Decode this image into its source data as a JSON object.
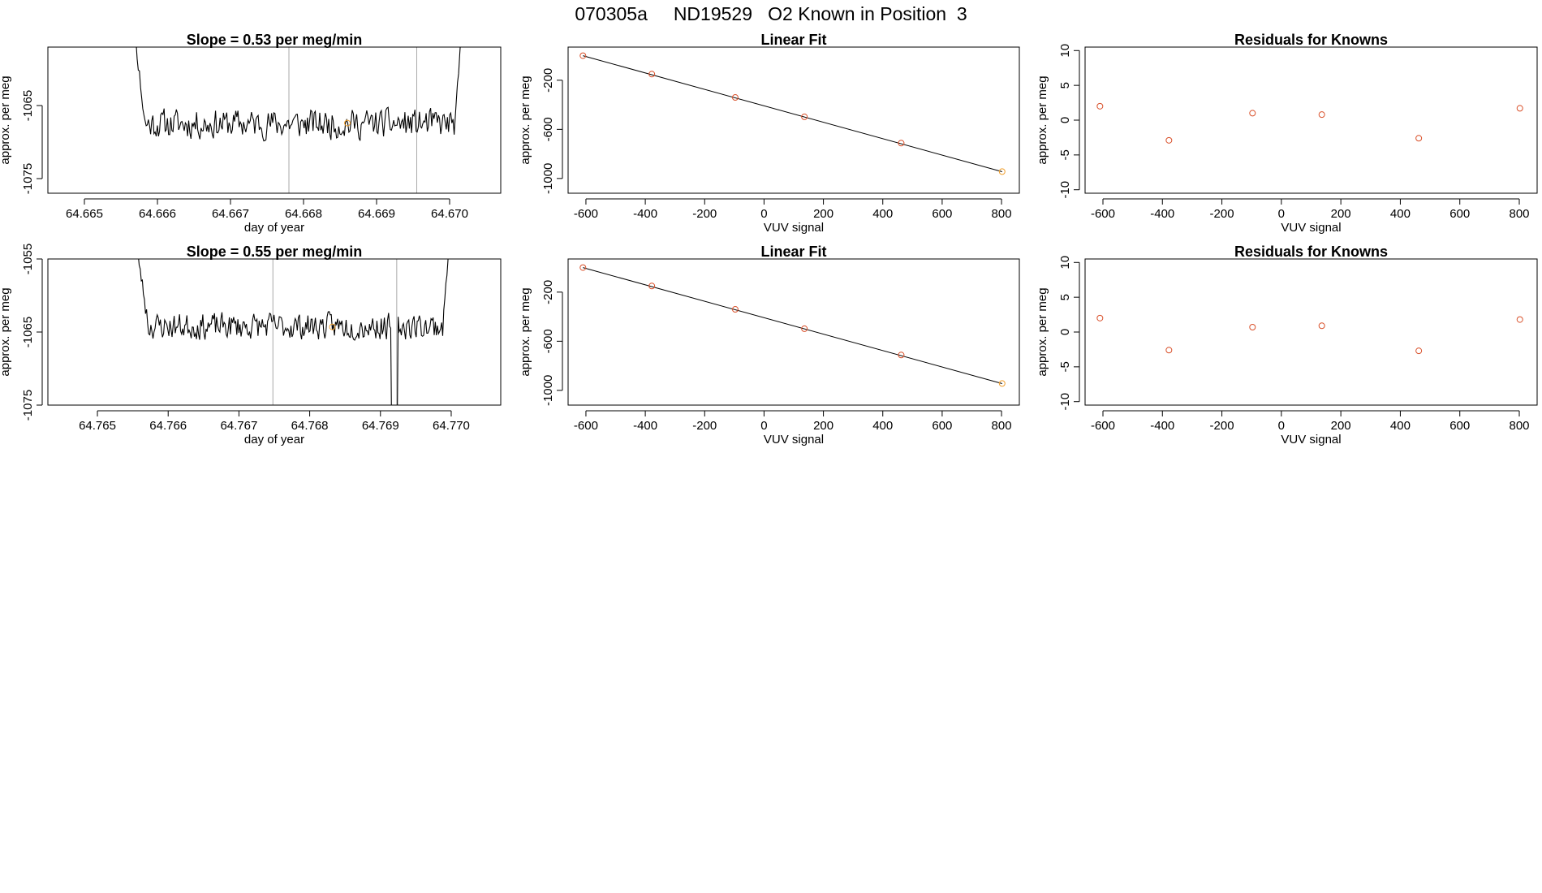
{
  "main_title": "070305a     ND19529   O2 Known in Position  3",
  "colors": {
    "line": "#000000",
    "point": "#d9502a",
    "highlight": "#f0a030",
    "frame": "#000000",
    "vline": "#aaaaaa"
  },
  "chart_data": [
    {
      "id": "ts1",
      "type": "line",
      "title": "Slope =  0.53  per meg/min",
      "xlabel": "day of year",
      "ylabel": "approx. per meg",
      "xlim": [
        64.6645,
        64.6707
      ],
      "ylim": [
        -1077,
        -1057
      ],
      "xticks": [
        64.665,
        64.666,
        64.667,
        64.668,
        64.669,
        64.67
      ],
      "xtick_labels": [
        "64.665",
        "64.666",
        "64.667",
        "64.668",
        "64.669",
        "64.670"
      ],
      "yticks": [
        -1065,
        -1075
      ],
      "ytick_labels": [
        "-1065",
        "-1075"
      ],
      "start": 64.6656,
      "end": 64.6702,
      "base": -1067.5,
      "noise": 2.6,
      "edge_left": -1047,
      "edge_right": -1048,
      "seed": 11,
      "vlines": [
        64.6678,
        64.66955
      ],
      "marker": {
        "x": 64.6686,
        "y": -1067.4
      }
    },
    {
      "id": "lf1",
      "type": "scatter+fit",
      "title": "Linear Fit",
      "xlabel": "VUV signal",
      "ylabel": "approx. per meg",
      "xlim": [
        -660,
        860
      ],
      "ylim": [
        -1120,
        70
      ],
      "xticks": [
        -600,
        -400,
        -200,
        0,
        200,
        400,
        600,
        800
      ],
      "xtick_labels": [
        "-600",
        "-400",
        "-200",
        "0",
        "200",
        "400",
        "600",
        "800"
      ],
      "yticks": [
        -200,
        -600,
        -1000
      ],
      "ytick_labels": [
        "-200",
        "-600",
        "-1000"
      ],
      "x": [
        -610,
        -378,
        -97,
        136,
        462,
        802
      ],
      "y": [
        0,
        -150,
        -340,
        -498,
        -712,
        -944
      ],
      "fit": {
        "x0": -610,
        "y0": 0,
        "x1": 802,
        "y1": -945
      },
      "highlight_index": 5
    },
    {
      "id": "rs1",
      "type": "scatter",
      "title": "Residuals for Knowns",
      "xlabel": "VUV signal",
      "ylabel": "approx. per meg",
      "xlim": [
        -660,
        860
      ],
      "ylim": [
        -10.5,
        10.5
      ],
      "xticks": [
        -600,
        -400,
        -200,
        0,
        200,
        400,
        600,
        800
      ],
      "xtick_labels": [
        "-600",
        "-400",
        "-200",
        "0",
        "200",
        "400",
        "600",
        "800"
      ],
      "yticks": [
        10,
        5,
        0,
        -5,
        -10
      ],
      "ytick_labels": [
        "10",
        "5",
        "0",
        "-5",
        "-10"
      ],
      "x": [
        -610,
        -378,
        -97,
        136,
        462,
        802
      ],
      "y": [
        2.0,
        -2.9,
        1.0,
        0.8,
        -2.6,
        1.7
      ]
    },
    {
      "id": "ts2",
      "type": "line",
      "title": "Slope =  0.55  per meg/min",
      "xlabel": "day of year",
      "ylabel": "approx. per meg",
      "xlim": [
        64.7643,
        64.7707
      ],
      "ylim": [
        -1075,
        -1055
      ],
      "xticks": [
        64.765,
        64.766,
        64.767,
        64.768,
        64.769,
        64.77
      ],
      "xtick_labels": [
        "64.765",
        "64.766",
        "64.767",
        "64.768",
        "64.769",
        "64.770"
      ],
      "yticks": [
        -1055,
        -1065,
        -1075
      ],
      "ytick_labels": [
        "-1055",
        "-1065",
        "-1075"
      ],
      "start": 64.7655,
      "end": 64.77,
      "base": -1064.2,
      "noise": 2.3,
      "edge_left": -1050,
      "edge_right": -1048,
      "seed": 23,
      "vlines": [
        64.76748,
        64.76923
      ],
      "dip": {
        "x": 64.7692,
        "y": -1080
      },
      "marker": {
        "x": 64.76832,
        "y": -1064.3
      }
    },
    {
      "id": "lf2",
      "type": "scatter+fit",
      "title": "Linear Fit",
      "xlabel": "VUV signal",
      "ylabel": "approx. per meg",
      "xlim": [
        -660,
        860
      ],
      "ylim": [
        -1120,
        70
      ],
      "xticks": [
        -600,
        -400,
        -200,
        0,
        200,
        400,
        600,
        800
      ],
      "xtick_labels": [
        "-600",
        "-400",
        "-200",
        "0",
        "200",
        "400",
        "600",
        "800"
      ],
      "yticks": [
        -200,
        -600,
        -1000
      ],
      "ytick_labels": [
        "-200",
        "-600",
        "-1000"
      ],
      "x": [
        -610,
        -378,
        -97,
        136,
        462,
        802
      ],
      "y": [
        0,
        -150,
        -340,
        -498,
        -712,
        -944
      ],
      "fit": {
        "x0": -610,
        "y0": 0,
        "x1": 802,
        "y1": -945
      },
      "highlight_index": 5
    },
    {
      "id": "rs2",
      "type": "scatter",
      "title": "Residuals for Knowns",
      "xlabel": "VUV signal",
      "ylabel": "approx. per meg",
      "xlim": [
        -660,
        860
      ],
      "ylim": [
        -10.5,
        10.5
      ],
      "xticks": [
        -600,
        -400,
        -200,
        0,
        200,
        400,
        600,
        800
      ],
      "xtick_labels": [
        "-600",
        "-400",
        "-200",
        "0",
        "200",
        "400",
        "600",
        "800"
      ],
      "yticks": [
        10,
        5,
        0,
        -5,
        -10
      ],
      "ytick_labels": [
        "10",
        "5",
        "0",
        "-5",
        "-10"
      ],
      "x": [
        -610,
        -378,
        -97,
        136,
        462,
        802
      ],
      "y": [
        2.0,
        -2.6,
        0.7,
        0.9,
        -2.7,
        1.8
      ]
    }
  ]
}
